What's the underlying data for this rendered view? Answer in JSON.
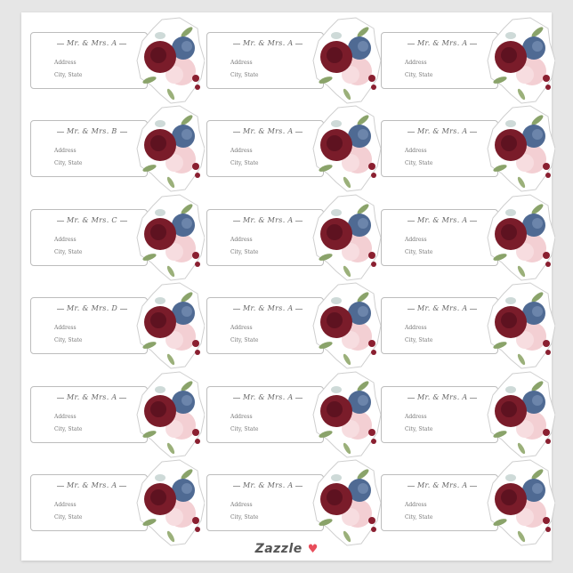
{
  "labels": [
    {
      "name": "Mr. & Mrs. A",
      "address": "Address",
      "city": "City, State"
    },
    {
      "name": "Mr. & Mrs. A",
      "address": "Address",
      "city": "City, State"
    },
    {
      "name": "Mr. & Mrs. A",
      "address": "Address",
      "city": "City, State"
    },
    {
      "name": "Mr. & Mrs. B",
      "address": "Address",
      "city": "City, State"
    },
    {
      "name": "Mr. & Mrs. A",
      "address": "Address",
      "city": "City, State"
    },
    {
      "name": "Mr. & Mrs. A",
      "address": "Address",
      "city": "City, State"
    },
    {
      "name": "Mr. & Mrs. C",
      "address": "Address",
      "city": "City, State"
    },
    {
      "name": "Mr. & Mrs. A",
      "address": "Address",
      "city": "City, State"
    },
    {
      "name": "Mr. & Mrs. A",
      "address": "Address",
      "city": "City, State"
    },
    {
      "name": "Mr. & Mrs. D",
      "address": "Address",
      "city": "City, State"
    },
    {
      "name": "Mr. & Mrs. A",
      "address": "Address",
      "city": "City, State"
    },
    {
      "name": "Mr. & Mrs. A",
      "address": "Address",
      "city": "City, State"
    },
    {
      "name": "Mr. & Mrs. A",
      "address": "Address",
      "city": "City, State"
    },
    {
      "name": "Mr. & Mrs. A",
      "address": "Address",
      "city": "City, State"
    },
    {
      "name": "Mr. & Mrs. A",
      "address": "Address",
      "city": "City, State"
    },
    {
      "name": "Mr. & Mrs. A",
      "address": "Address",
      "city": "City, State"
    },
    {
      "name": "Mr. & Mrs. A",
      "address": "Address",
      "city": "City, State"
    },
    {
      "name": "Mr. & Mrs. A",
      "address": "Address",
      "city": "City, State"
    }
  ],
  "footer": {
    "brand": "Zazzle",
    "heart_icon": "heart-icon"
  },
  "colors": {
    "burgundy": "#7a1c2a",
    "navy": "#4f6a93",
    "blush": "#f3cfd3",
    "leaf": "#8aa36a",
    "heart": "#e84d5b"
  }
}
